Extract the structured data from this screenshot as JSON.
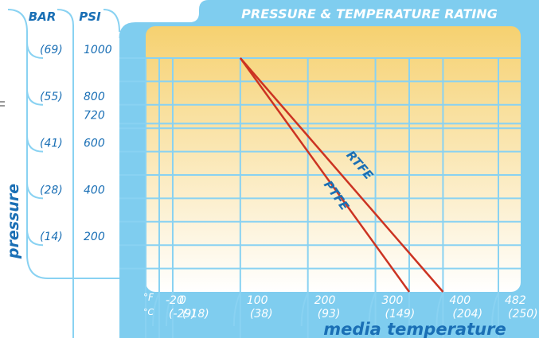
{
  "chart_data": {
    "type": "line",
    "title": "PRESSURE & TEMPERATURE RATING",
    "xlabel": "media temperature",
    "ylabel": "pressure",
    "x_unit_labels": [
      "°F",
      "°C"
    ],
    "y_unit_labels": [
      "BAR",
      "PSI"
    ],
    "x_ticks": [
      {
        "f": "-20",
        "c": "(-29)"
      },
      {
        "f": "0",
        "c": "(-18)"
      },
      {
        "f": "100",
        "c": "(38)"
      },
      {
        "f": "200",
        "c": "(93)"
      },
      {
        "f": "300",
        "c": "(149)"
      },
      {
        "f": "400",
        "c": "(204)"
      },
      {
        "f": "482",
        "c": "(250)"
      }
    ],
    "y_ticks": [
      {
        "psi": "1000",
        "bar": "(69)"
      },
      {
        "psi": "800",
        "bar": "(55)"
      },
      {
        "psi": "720",
        "bar": ""
      },
      {
        "psi": "600",
        "bar": "(41)"
      },
      {
        "psi": "400",
        "bar": "(28)"
      },
      {
        "psi": "200",
        "bar": "(14)"
      }
    ],
    "xlim": [
      -20,
      482
    ],
    "ylim": [
      0,
      1000
    ],
    "series": [
      {
        "name": "RTFE",
        "x": [
          100,
          400
        ],
        "y": [
          1000,
          0
        ]
      },
      {
        "name": "PTFE",
        "x": [
          100,
          350
        ],
        "y": [
          1000,
          0
        ]
      }
    ],
    "colors": {
      "frame": "#7fcdef",
      "grid": "#89d2f2",
      "plot_top": "#f6d170",
      "plot_bottom": "#ffffff",
      "series_line": "#cc3322",
      "text": "#1a6fb5"
    }
  }
}
